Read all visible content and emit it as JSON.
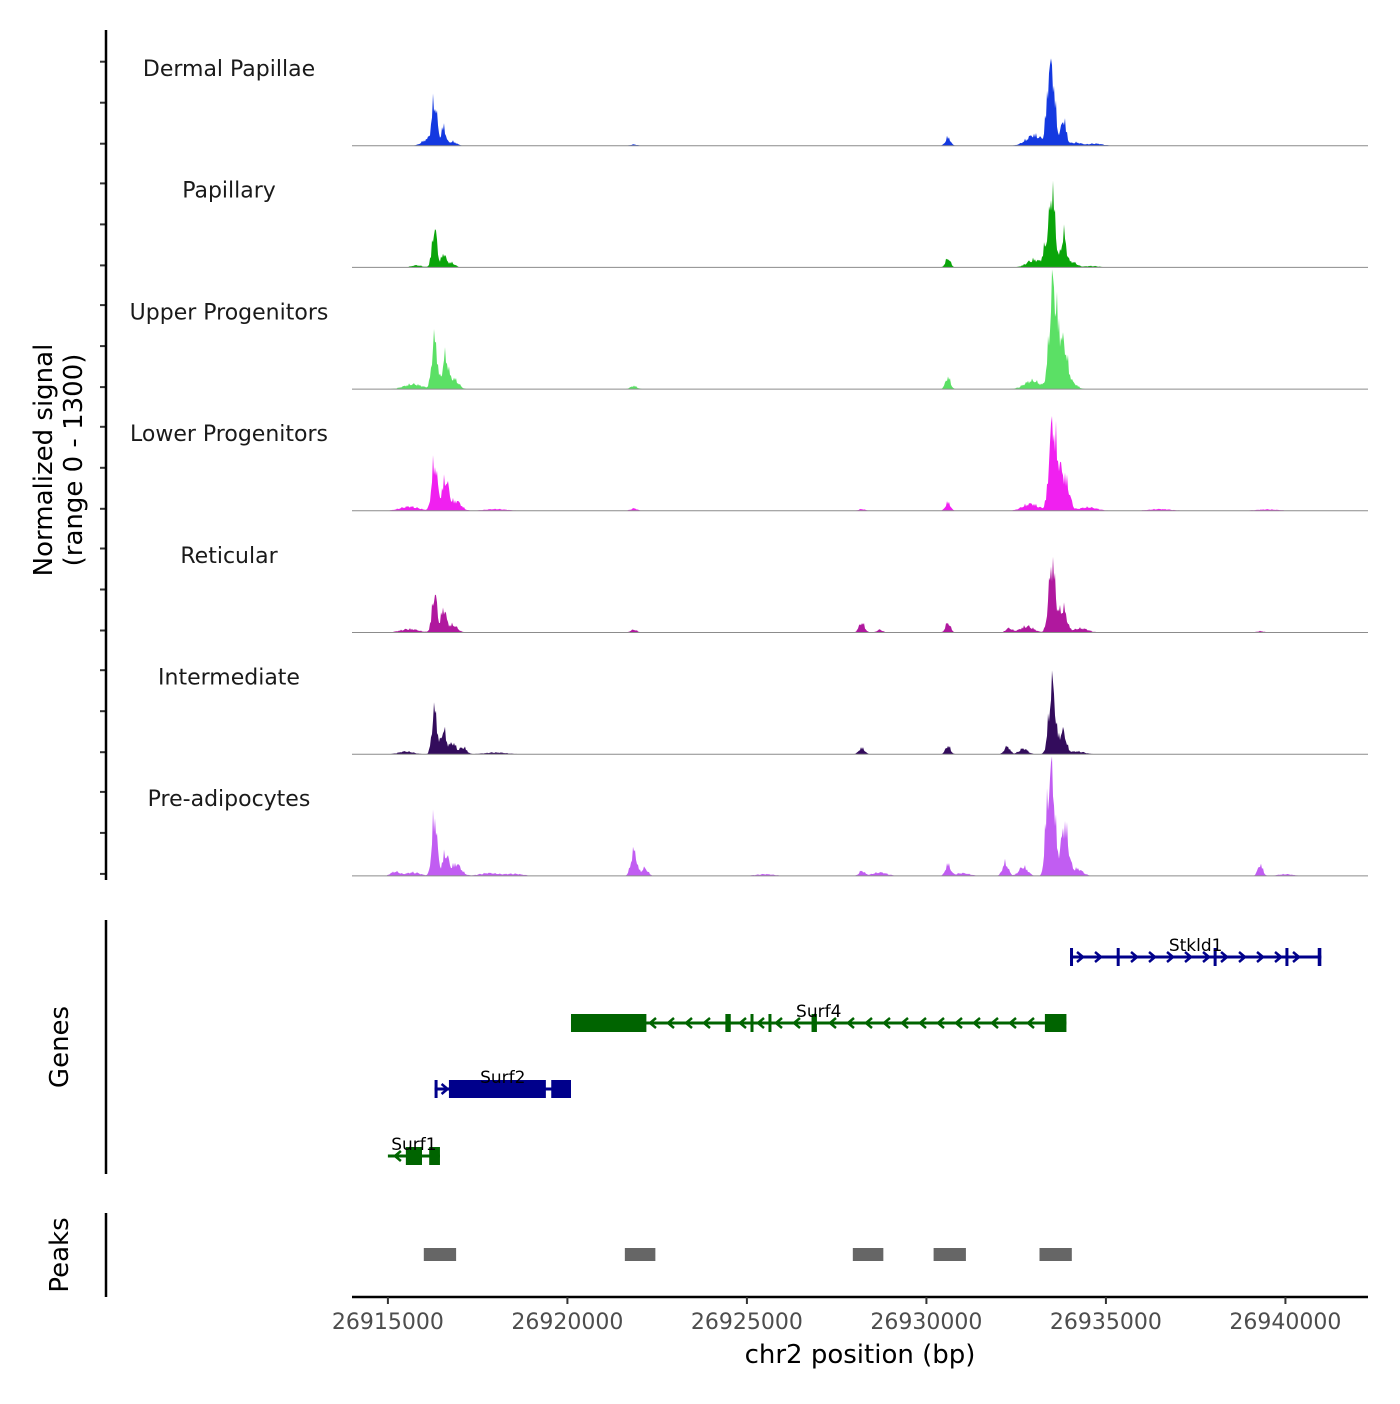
{
  "chart_data": {
    "type": "area",
    "title": "",
    "ylabel_line1": "Normalized signal",
    "ylabel_line2": "(range 0 - 1300)",
    "y_range": [
      0,
      1300
    ],
    "xlabel": "chr2 position (bp)",
    "x_range": [
      26914000,
      26942300
    ],
    "x_ticks": [
      26915000,
      26920000,
      26925000,
      26930000,
      26935000,
      26940000
    ],
    "x_tick_labels": [
      "26915000",
      "26920000",
      "26925000",
      "26930000",
      "26935000",
      "26940000"
    ],
    "tracks": [
      {
        "name": "Dermal Papillae",
        "color": "#1439E0",
        "peaks": [
          [
            26916300,
            640,
            70
          ],
          [
            26916550,
            270,
            60
          ],
          [
            26916100,
            90,
            150
          ],
          [
            26916800,
            60,
            110
          ],
          [
            26921850,
            18,
            90
          ],
          [
            26930600,
            120,
            70
          ],
          [
            26933000,
            150,
            220
          ],
          [
            26933500,
            1020,
            90
          ],
          [
            26933380,
            420,
            60
          ],
          [
            26933820,
            380,
            70
          ],
          [
            26934150,
            45,
            160
          ],
          [
            26934700,
            30,
            200
          ]
        ]
      },
      {
        "name": "Papillary",
        "color": "#0AA50A",
        "peaks": [
          [
            26916300,
            550,
            70
          ],
          [
            26916550,
            190,
            60
          ],
          [
            26916750,
            70,
            110
          ],
          [
            26915800,
            30,
            150
          ],
          [
            26930600,
            130,
            70
          ],
          [
            26933000,
            110,
            200
          ],
          [
            26933500,
            1100,
            85
          ],
          [
            26933300,
            220,
            60
          ],
          [
            26933820,
            470,
            70
          ],
          [
            26934050,
            80,
            130
          ],
          [
            26934600,
            20,
            200
          ]
        ]
      },
      {
        "name": "Upper Progenitors",
        "color": "#5BE065",
        "peaks": [
          [
            26915700,
            70,
            250
          ],
          [
            26916300,
            720,
            75
          ],
          [
            26916600,
            460,
            80
          ],
          [
            26916850,
            140,
            120
          ],
          [
            26921850,
            45,
            90
          ],
          [
            26930600,
            170,
            70
          ],
          [
            26932950,
            120,
            220
          ],
          [
            26933500,
            1250,
            90
          ],
          [
            26933650,
            680,
            100
          ],
          [
            26933850,
            520,
            100
          ],
          [
            26934100,
            70,
            120
          ]
        ]
      },
      {
        "name": "Lower Progenitors",
        "color": "#F020F0",
        "peaks": [
          [
            26915600,
            60,
            260
          ],
          [
            26916300,
            720,
            75
          ],
          [
            26916600,
            450,
            90
          ],
          [
            26916900,
            140,
            140
          ],
          [
            26918000,
            25,
            300
          ],
          [
            26921850,
            35,
            90
          ],
          [
            26928200,
            25,
            90
          ],
          [
            26930600,
            120,
            70
          ],
          [
            26932900,
            100,
            220
          ],
          [
            26933500,
            1080,
            90
          ],
          [
            26933680,
            560,
            110
          ],
          [
            26933900,
            360,
            100
          ],
          [
            26934500,
            50,
            250
          ],
          [
            26936500,
            25,
            300
          ],
          [
            26939500,
            20,
            300
          ]
        ]
      },
      {
        "name": "Reticular",
        "color": "#B0189E",
        "peaks": [
          [
            26915600,
            50,
            250
          ],
          [
            26916300,
            560,
            70
          ],
          [
            26916550,
            330,
            70
          ],
          [
            26916800,
            110,
            130
          ],
          [
            26921850,
            40,
            90
          ],
          [
            26928200,
            140,
            80
          ],
          [
            26928700,
            40,
            80
          ],
          [
            26930600,
            140,
            70
          ],
          [
            26932300,
            60,
            90
          ],
          [
            26932800,
            90,
            180
          ],
          [
            26933500,
            1000,
            90
          ],
          [
            26933800,
            360,
            100
          ],
          [
            26934300,
            60,
            200
          ],
          [
            26939300,
            20,
            100
          ]
        ]
      },
      {
        "name": "Intermediate",
        "color": "#330C5C",
        "peaks": [
          [
            26915500,
            40,
            200
          ],
          [
            26916300,
            640,
            70
          ],
          [
            26916550,
            340,
            70
          ],
          [
            26916800,
            160,
            100
          ],
          [
            26917100,
            100,
            90
          ],
          [
            26918000,
            25,
            300
          ],
          [
            26928200,
            90,
            80
          ],
          [
            26930600,
            120,
            70
          ],
          [
            26932250,
            110,
            80
          ],
          [
            26932700,
            80,
            120
          ],
          [
            26933500,
            1000,
            90
          ],
          [
            26933800,
            320,
            90
          ],
          [
            26934200,
            40,
            200
          ]
        ]
      },
      {
        "name": "Pre-adipocytes",
        "color": "#C15DF2",
        "peaks": [
          [
            26915200,
            60,
            120
          ],
          [
            26915700,
            50,
            200
          ],
          [
            26916300,
            880,
            70
          ],
          [
            26916600,
            320,
            80
          ],
          [
            26916900,
            170,
            140
          ],
          [
            26917800,
            40,
            250
          ],
          [
            26918500,
            30,
            250
          ],
          [
            26921850,
            360,
            80
          ],
          [
            26922150,
            110,
            90
          ],
          [
            26925500,
            25,
            250
          ],
          [
            26928200,
            70,
            80
          ],
          [
            26928700,
            50,
            200
          ],
          [
            26930600,
            160,
            70
          ],
          [
            26931000,
            40,
            200
          ],
          [
            26932200,
            190,
            80
          ],
          [
            26932700,
            130,
            120
          ],
          [
            26933500,
            1450,
            85
          ],
          [
            26933350,
            700,
            60
          ],
          [
            26933850,
            730,
            100
          ],
          [
            26934200,
            100,
            150
          ],
          [
            26939300,
            160,
            70
          ],
          [
            26940000,
            25,
            200
          ]
        ]
      }
    ],
    "genes": [
      {
        "name": "Stkld1",
        "color": "#00008B",
        "strand": "+",
        "row": 0,
        "start": 26934000,
        "end": 26941000,
        "exons": [
          [
            26934000,
            26934080
          ],
          [
            26935300,
            26935380
          ],
          [
            26938000,
            26938080
          ],
          [
            26940000,
            26940080
          ],
          [
            26940900,
            26941000
          ]
        ]
      },
      {
        "name": "Surf4",
        "color": "#006400",
        "strand": "-",
        "row": 1,
        "start": 26920100,
        "end": 26933900,
        "exons": [
          [
            26920100,
            26922200
          ],
          [
            26924400,
            26924550
          ],
          [
            26925100,
            26925180
          ],
          [
            26925600,
            26925680
          ],
          [
            26926800,
            26926950
          ],
          [
            26933300,
            26933900
          ]
        ]
      },
      {
        "name": "Surf2",
        "color": "#00008B",
        "strand": "+",
        "row": 2,
        "start": 26916300,
        "end": 26920100,
        "exons": [
          [
            26916300,
            26916380
          ],
          [
            26916700,
            26919400
          ],
          [
            26919550,
            26920100
          ]
        ]
      },
      {
        "name": "Surf1",
        "color": "#006400",
        "strand": "-",
        "row": 3,
        "start": 26915000,
        "end": 26916450,
        "exons": [
          [
            26915500,
            26915950
          ],
          [
            26916150,
            26916450
          ]
        ]
      }
    ],
    "peaks_track": {
      "label": "Peaks",
      "color": "#666666",
      "regions": [
        [
          26916000,
          26916900
        ],
        [
          26921600,
          26922450
        ],
        [
          26927950,
          26928800
        ],
        [
          26930200,
          26931100
        ],
        [
          26933150,
          26934050
        ]
      ]
    },
    "genes_label": "Genes"
  }
}
